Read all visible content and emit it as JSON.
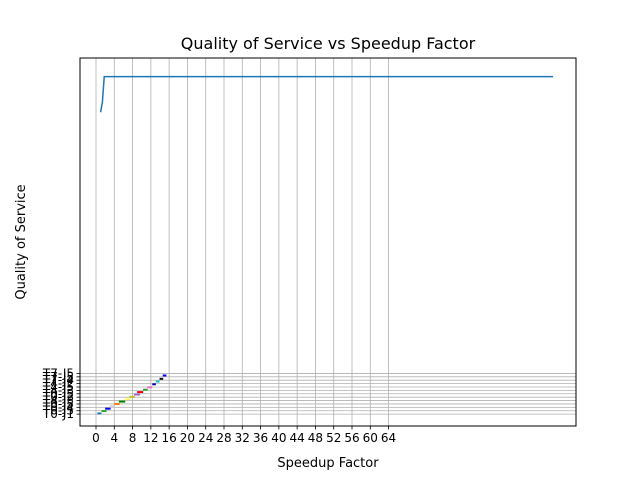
{
  "chart_data": {
    "type": "line",
    "title": "Quality of Service vs Speedup Factor",
    "xlabel": "Speedup Factor",
    "ylabel": "Quality of Service",
    "xlim": [
      -3.5,
      105
    ],
    "ylim": [
      -0.35,
      10.5
    ],
    "grid": true,
    "x_ticks": [
      0,
      4,
      8,
      12,
      16,
      20,
      24,
      28,
      32,
      36,
      40,
      44,
      48,
      52,
      56,
      60,
      64
    ],
    "y_tick_values": [
      0.0,
      0.1,
      0.2,
      0.3,
      0.4,
      0.5,
      0.6,
      0.7,
      0.8,
      0.9,
      1.0,
      1.1,
      1.2
    ],
    "y_tick_labels": [
      "T0-J1",
      "T0-J5",
      "T0-J4",
      "T0-J5",
      "T4-J5",
      "T0-J3",
      "T0-J5",
      "T4-J3",
      "T4-J5",
      "T4-J2",
      "T7-J4",
      "T7-J5",
      "T7-J5"
    ],
    "series": [
      {
        "name": "",
        "color": "#1f77b4",
        "x": [
          1,
          1.4,
          1.8,
          100
        ],
        "y": [
          8.9,
          9.2,
          9.95,
          9.95
        ]
      }
    ],
    "task_marks": [
      {
        "x1": 0.3,
        "x2": 1.2,
        "y": 0.02,
        "color": "#1f77b4"
      },
      {
        "x1": 1.2,
        "x2": 2.3,
        "y": 0.09,
        "color": "#2ca02c"
      },
      {
        "x1": 2.0,
        "x2": 3.2,
        "y": 0.16,
        "color": "#0000ff"
      },
      {
        "x1": 3.0,
        "x2": 4.2,
        "y": 0.23,
        "color": "#d3d3d3"
      },
      {
        "x1": 4.0,
        "x2": 5.2,
        "y": 0.3,
        "color": "#ff7f0e"
      },
      {
        "x1": 5.0,
        "x2": 6.4,
        "y": 0.37,
        "color": "#008000"
      },
      {
        "x1": 6.3,
        "x2": 7.5,
        "y": 0.44,
        "color": "#ffff66"
      },
      {
        "x1": 7.3,
        "x2": 8.5,
        "y": 0.51,
        "color": "#bcbd22"
      },
      {
        "x1": 8.3,
        "x2": 9.6,
        "y": 0.58,
        "color": "#9467bd"
      },
      {
        "x1": 9.0,
        "x2": 10.3,
        "y": 0.65,
        "color": "#ff0000"
      },
      {
        "x1": 10.3,
        "x2": 11.3,
        "y": 0.72,
        "color": "#2ca02c"
      },
      {
        "x1": 11.2,
        "x2": 12.3,
        "y": 0.79,
        "color": "#e377c2"
      },
      {
        "x1": 12.3,
        "x2": 13.1,
        "y": 0.88,
        "color": "#0000aa"
      },
      {
        "x1": 13.1,
        "x2": 13.9,
        "y": 0.96,
        "color": "#17becf"
      },
      {
        "x1": 13.9,
        "x2": 14.7,
        "y": 1.04,
        "color": "#111111"
      },
      {
        "x1": 14.6,
        "x2": 15.4,
        "y": 1.14,
        "color": "#0000ff"
      }
    ]
  }
}
